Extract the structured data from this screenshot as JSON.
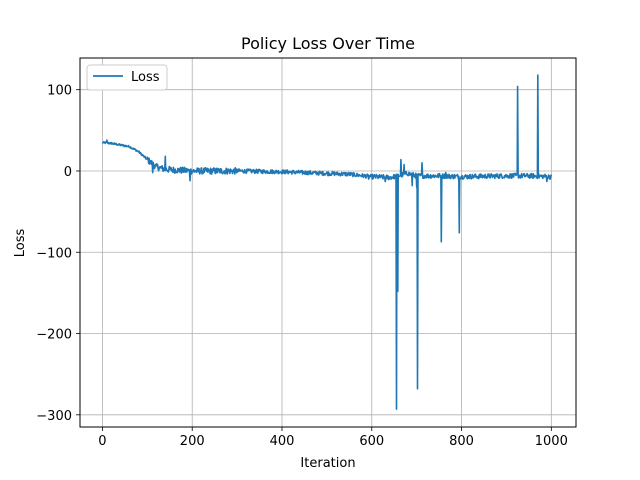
{
  "chart_data": {
    "type": "line",
    "title": "Policy Loss Over Time",
    "xlabel": "Iteration",
    "ylabel": "Loss",
    "xlim": [
      -50,
      1055
    ],
    "ylim": [
      -315,
      139
    ],
    "xticks": [
      0,
      200,
      400,
      600,
      800,
      1000
    ],
    "xtick_labels": [
      "0",
      "200",
      "400",
      "600",
      "800",
      "1000"
    ],
    "yticks": [
      100,
      0,
      -100,
      -200,
      -300
    ],
    "ytick_labels": [
      "100",
      "0",
      "−100",
      "−200",
      "−300"
    ],
    "grid": true,
    "legend": {
      "placement": "top-left",
      "entries": [
        "Loss"
      ]
    },
    "series": [
      {
        "name": "Loss",
        "color": "#1f77b4",
        "trend": [
          [
            0,
            35
          ],
          [
            20,
            34
          ],
          [
            40,
            32
          ],
          [
            60,
            30
          ],
          [
            80,
            24
          ],
          [
            100,
            14
          ],
          [
            120,
            5
          ],
          [
            140,
            2
          ],
          [
            200,
            0
          ],
          [
            300,
            0
          ],
          [
            400,
            -1
          ],
          [
            500,
            -3
          ],
          [
            550,
            -4
          ],
          [
            600,
            -7
          ],
          [
            640,
            -8
          ],
          [
            660,
            -6
          ],
          [
            680,
            -3
          ],
          [
            700,
            -6
          ],
          [
            750,
            -6
          ],
          [
            800,
            -7
          ],
          [
            900,
            -6
          ],
          [
            950,
            -6
          ],
          [
            1000,
            -7
          ]
        ],
        "spikes": [
          [
            10,
            38
          ],
          [
            112,
            -2
          ],
          [
            140,
            18
          ],
          [
            160,
            -1
          ],
          [
            195,
            -12
          ],
          [
            593,
            -10
          ],
          [
            630,
            -13
          ],
          [
            655,
            -293
          ],
          [
            658,
            -148
          ],
          [
            665,
            14
          ],
          [
            672,
            8
          ],
          [
            690,
            -18
          ],
          [
            700,
            -20
          ],
          [
            702,
            -268
          ],
          [
            712,
            10
          ],
          [
            720,
            -8
          ],
          [
            755,
            -87
          ],
          [
            765,
            -2
          ],
          [
            795,
            -76
          ],
          [
            925,
            104
          ],
          [
            970,
            118
          ],
          [
            990,
            -13
          ]
        ]
      }
    ]
  }
}
